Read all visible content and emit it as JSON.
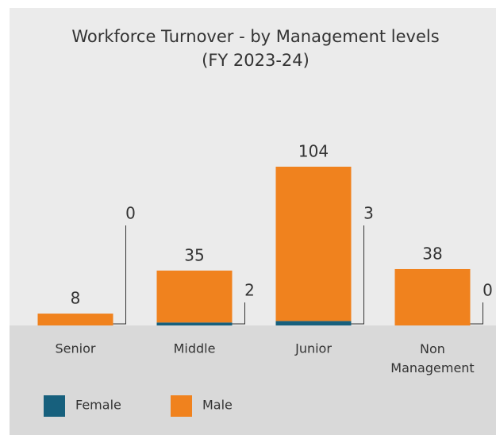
{
  "chart_data": {
    "type": "stacked-bar",
    "title": "Workforce Turnover - by Management levels",
    "subtitle": "(FY 2023-24)",
    "categories": [
      "Senior",
      "Middle",
      "Junior",
      "Non Management"
    ],
    "series": [
      {
        "name": "Female",
        "color": "#17607d",
        "values": [
          0,
          2,
          3,
          0
        ]
      },
      {
        "name": "Male",
        "color": "#f0821e",
        "values": [
          8,
          35,
          104,
          38
        ]
      }
    ],
    "legend": "bottom-left"
  }
}
